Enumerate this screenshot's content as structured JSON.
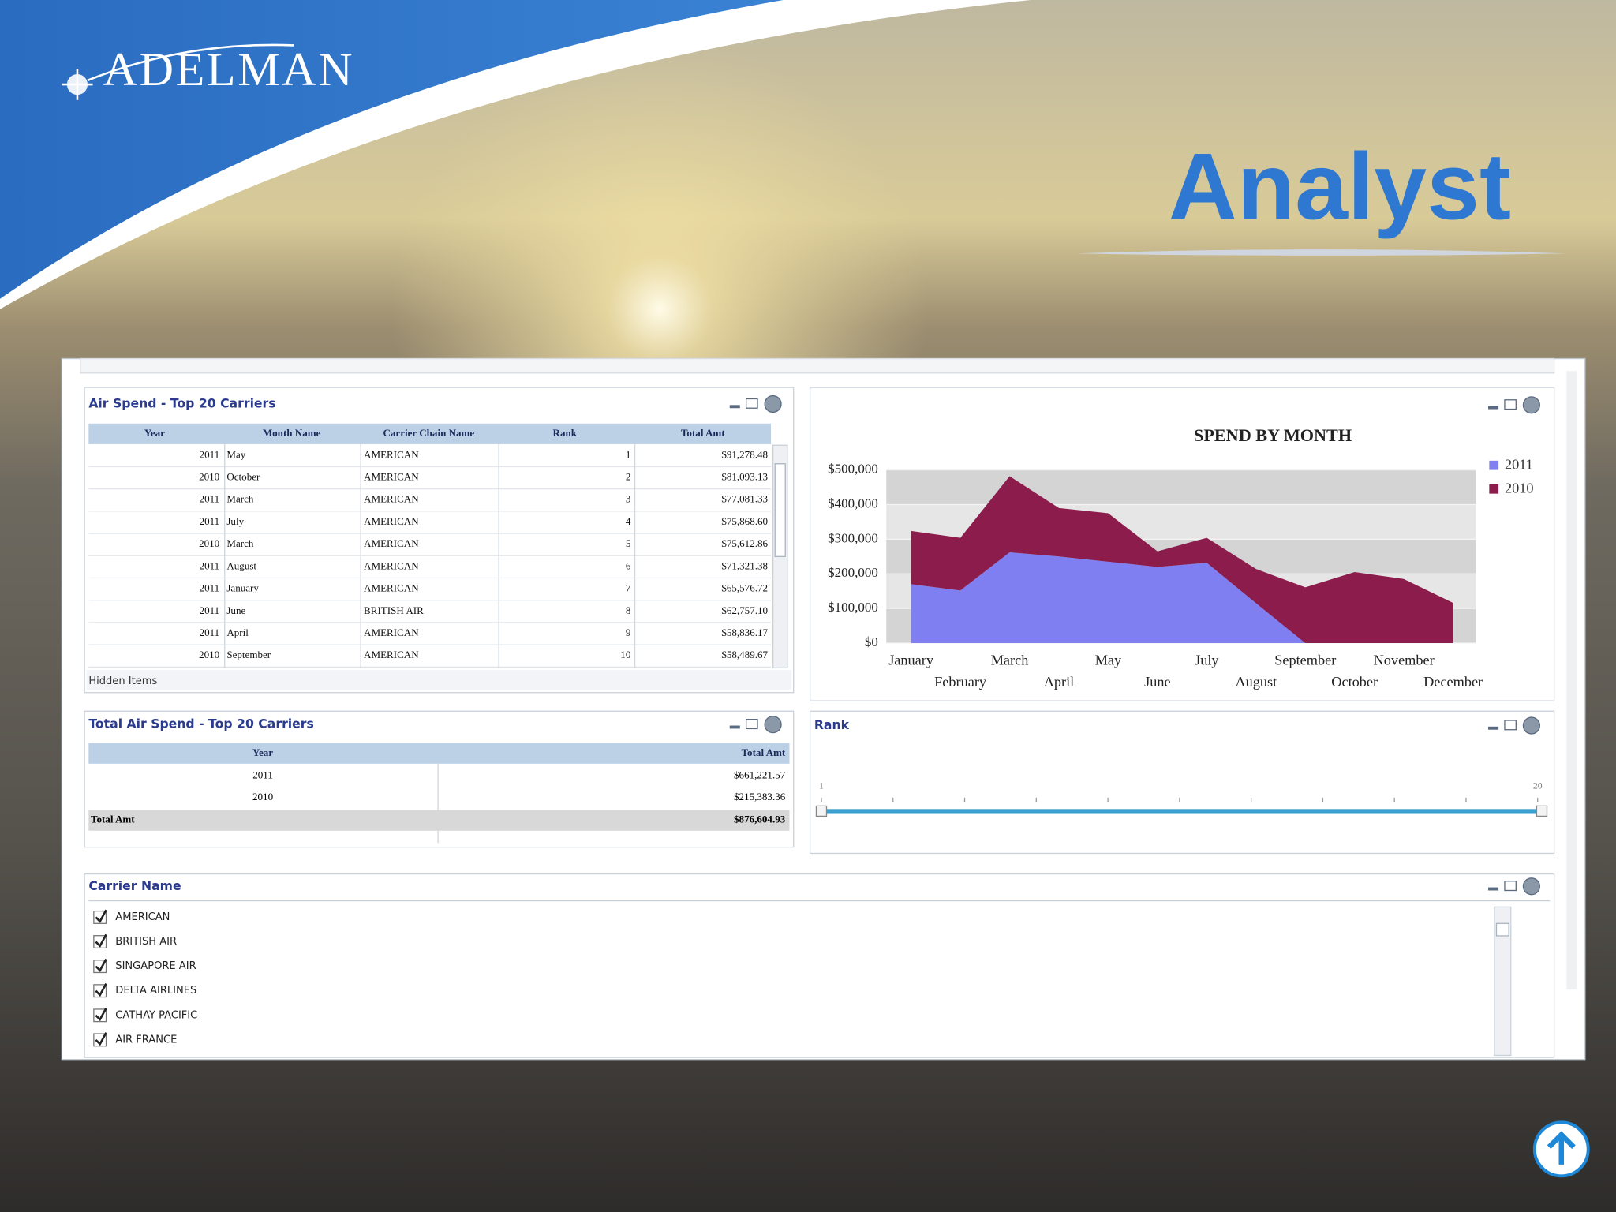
{
  "header": {
    "logo": "ADELMAN",
    "title": "Analyst"
  },
  "table_panel": {
    "title": "Air Spend - Top 20 Carriers",
    "columns": [
      "Year",
      "Month Name",
      "Carrier Chain Name",
      "Rank",
      "Total Amt"
    ],
    "rows": [
      [
        2011,
        "May",
        "AMERICAN",
        1,
        "$91,278.48"
      ],
      [
        2010,
        "October",
        "AMERICAN",
        2,
        "$81,093.13"
      ],
      [
        2011,
        "March",
        "AMERICAN",
        3,
        "$77,081.33"
      ],
      [
        2011,
        "July",
        "AMERICAN",
        4,
        "$75,868.60"
      ],
      [
        2010,
        "March",
        "AMERICAN",
        5,
        "$75,612.86"
      ],
      [
        2011,
        "August",
        "AMERICAN",
        6,
        "$71,321.38"
      ],
      [
        2011,
        "January",
        "AMERICAN",
        7,
        "$65,576.72"
      ],
      [
        2011,
        "June",
        "BRITISH AIR",
        8,
        "$62,757.10"
      ],
      [
        2011,
        "April",
        "AMERICAN",
        9,
        "$58,836.17"
      ],
      [
        2010,
        "September",
        "AMERICAN",
        10,
        "$58,489.67"
      ]
    ],
    "footer": "Hidden Items"
  },
  "total_panel": {
    "title": "Total Air Spend - Top 20 Carriers",
    "columns": [
      "Year",
      "Total Amt"
    ],
    "rows": [
      [
        2011,
        "$661,221.57"
      ],
      [
        2010,
        "$215,383.36"
      ]
    ],
    "total": [
      "Total Amt",
      "$876,604.93"
    ]
  },
  "rank_panel": {
    "title": "Rank",
    "min": 1,
    "max": 20
  },
  "carrier_panel": {
    "title": "Carrier Name",
    "items": [
      "AMERICAN",
      "BRITISH AIR",
      "SINGAPORE AIR",
      "DELTA AIRLINES",
      "CATHAY PACIFIC",
      "AIR FRANCE"
    ]
  },
  "chart_data": {
    "type": "area",
    "stacked": true,
    "title": "SPEND BY MONTH",
    "categories": [
      "January",
      "February",
      "March",
      "April",
      "May",
      "June",
      "July",
      "August",
      "September",
      "October",
      "November",
      "December"
    ],
    "series": [
      {
        "name": "2011",
        "color": "#7f7ff2",
        "values": [
          170000,
          152000,
          262000,
          250000,
          235000,
          220000,
          232000,
          115000,
          0,
          0,
          0,
          0
        ]
      },
      {
        "name": "2010",
        "color": "#8c1c4c",
        "values": [
          154000,
          152000,
          220000,
          140000,
          140000,
          45000,
          72000,
          99000,
          161000,
          205000,
          185000,
          116000
        ]
      }
    ],
    "ylim": [
      0,
      500000
    ],
    "yticks": [
      {
        "value": 0,
        "label": "$0"
      },
      {
        "value": 100000,
        "label": "$100,000"
      },
      {
        "value": 200000,
        "label": "$200,000"
      },
      {
        "value": 300000,
        "label": "$300,000"
      },
      {
        "value": 400000,
        "label": "$400,000"
      },
      {
        "value": 500000,
        "label": "$500,000"
      }
    ],
    "grid": true,
    "legend": "top-right"
  }
}
